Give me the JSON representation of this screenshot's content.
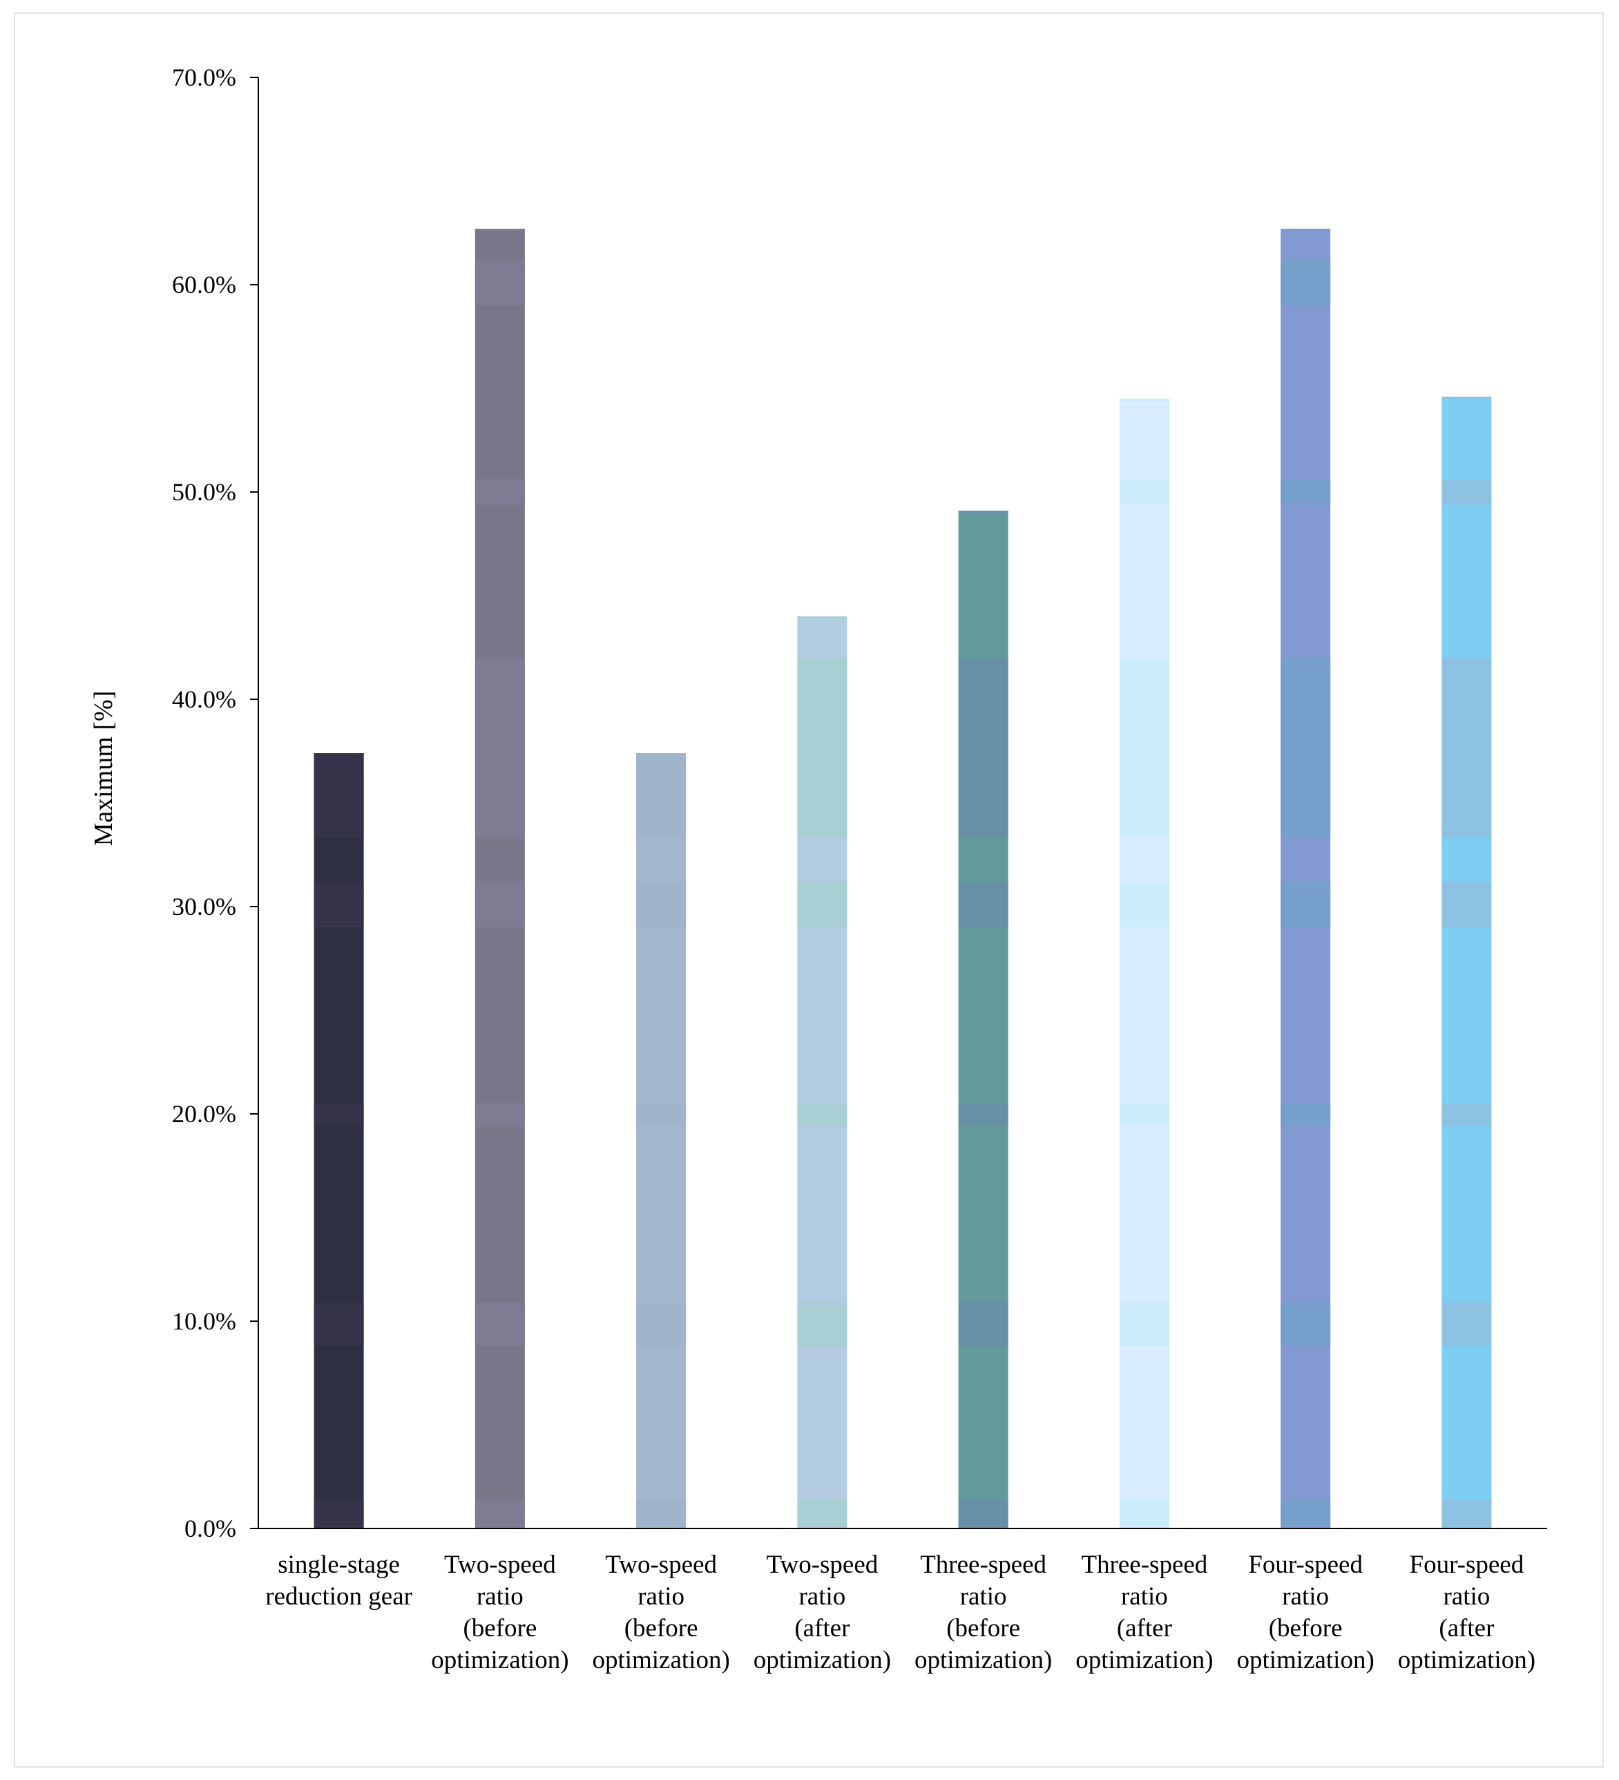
{
  "chart_data": {
    "type": "bar",
    "title": "",
    "xlabel": "",
    "ylabel": "Maximum [%]",
    "ylim": [
      0,
      70
    ],
    "yticks": [
      "0.0%",
      "10.0%",
      "20.0%",
      "30.0%",
      "40.0%",
      "50.0%",
      "60.0%",
      "70.0%"
    ],
    "ytick_values": [
      0,
      10,
      20,
      30,
      40,
      50,
      60,
      70
    ],
    "grid": false,
    "legend": "none",
    "categories": [
      [
        "single-stage",
        "reduction gear"
      ],
      [
        "Two-speed",
        "ratio",
        "(before",
        "optimization)"
      ],
      [
        "Two-speed",
        "ratio",
        "(before",
        "optimization)"
      ],
      [
        "Two-speed",
        "ratio",
        "(after",
        "optimization)"
      ],
      [
        "Three-speed",
        "ratio",
        "(before",
        "optimization)"
      ],
      [
        "Three-speed",
        "ratio",
        "(after",
        "optimization)"
      ],
      [
        "Four-speed",
        "ratio",
        "(before",
        "optimization)"
      ],
      [
        "Four-speed",
        "ratio",
        "(after",
        "optimization)"
      ]
    ],
    "values": [
      37.4,
      62.7,
      37.4,
      44.0,
      49.1,
      54.5,
      62.7,
      54.6
    ],
    "colors": [
      "#2e2f42",
      "#78778a",
      "#a2b7cc",
      "#b3cce2",
      "#659a9c",
      "#d8edfd",
      "#8399d1",
      "#7ecdf3"
    ],
    "band_colors": [
      "#35334a",
      "#7e7c93",
      "#9db4ca",
      "#a9ced3",
      "#6590a6",
      "#cbecf8",
      "#769fcb",
      "#8dc2e3"
    ],
    "band_ranges": [
      [
        0,
        1.4
      ],
      [
        8.8,
        10.9
      ],
      [
        19.4,
        20.5
      ],
      [
        29.0,
        31.2
      ],
      [
        33.3,
        42.0
      ],
      [
        49.4,
        50.6
      ],
      [
        59.0,
        61.2
      ]
    ]
  }
}
